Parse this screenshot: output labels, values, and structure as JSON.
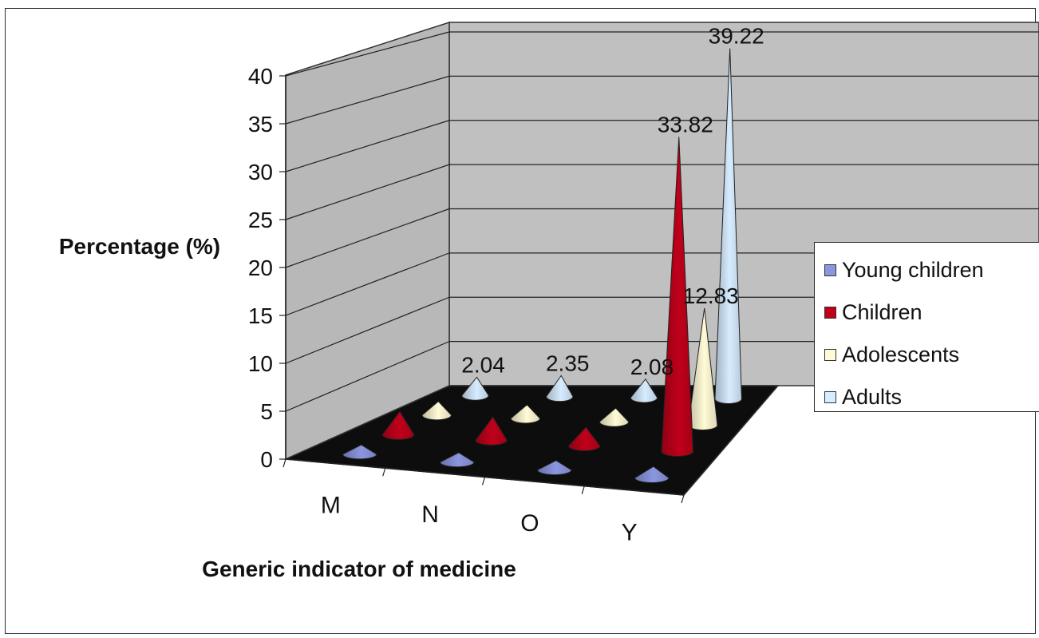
{
  "chart_data": {
    "type": "3d-cone",
    "categories": [
      "M",
      "N",
      "O",
      "Y"
    ],
    "series": [
      {
        "name": "Young children",
        "color": "#8c96e0",
        "values": [
          1.0,
          1.0,
          1.0,
          1.2
        ],
        "labels": [
          "",
          "",
          "",
          ""
        ]
      },
      {
        "name": "Children",
        "color": "#c0001a",
        "values": [
          2.5,
          2.5,
          2.0,
          33.82
        ],
        "labels": [
          "",
          "",
          "",
          "33.82"
        ]
      },
      {
        "name": "Adolescents",
        "color": "#fffbd6",
        "values": [
          1.5,
          1.5,
          1.5,
          12.83
        ],
        "labels": [
          "",
          "",
          "",
          "12.83"
        ]
      },
      {
        "name": "Adults",
        "color": "#d6ecff",
        "values": [
          2.04,
          2.35,
          2.08,
          39.22
        ],
        "labels": [
          "2.04",
          "2.35",
          "2.08",
          "39.22"
        ]
      }
    ],
    "xlabel": "Generic indicator of medicine",
    "ylabel": "Percentage (%)",
    "ylim": [
      0,
      40
    ],
    "yticks": [
      0,
      5,
      10,
      15,
      20,
      25,
      30,
      35,
      40
    ],
    "grid": true,
    "legend_position": "right"
  }
}
